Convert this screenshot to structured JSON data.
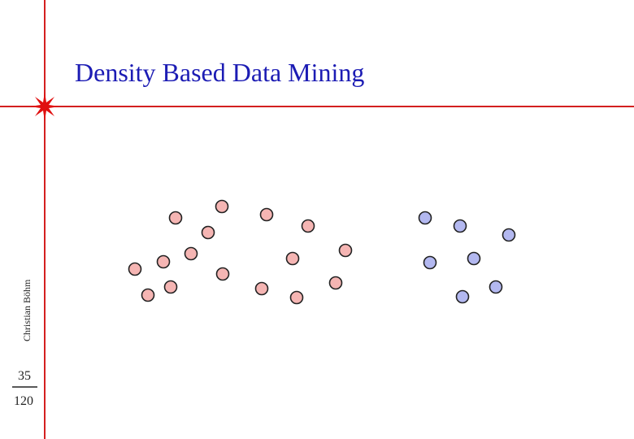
{
  "header": {
    "title": "Density Based Data Mining"
  },
  "footer": {
    "author": "Christian Böhm",
    "page": "35",
    "total": "120"
  }
}
